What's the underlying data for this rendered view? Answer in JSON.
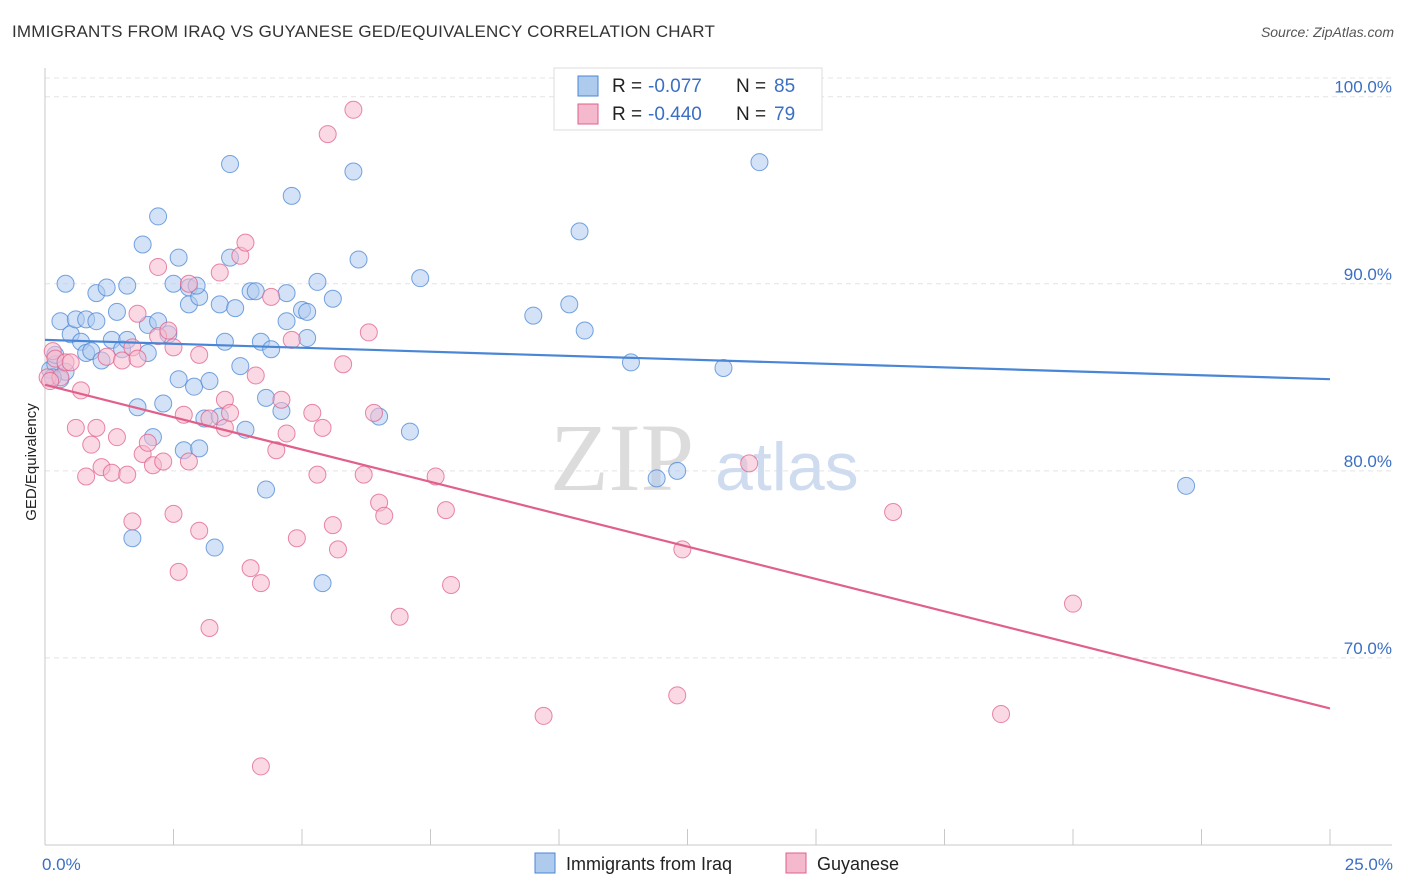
{
  "title": "IMMIGRANTS FROM IRAQ VS GUYANESE GED/EQUIVALENCY CORRELATION CHART",
  "source": "Source: ZipAtlas.com",
  "watermark": {
    "zip": "ZIP",
    "atlas": "atlas"
  },
  "legend_top": {
    "rows": [
      {
        "r_label": "R =",
        "r_value": "-0.077",
        "n_label": "N =",
        "n_value": "85",
        "color": "#aecbee"
      },
      {
        "r_label": "R =",
        "r_value": "-0.440",
        "n_label": "N =",
        "n_value": "79",
        "color": "#f5b9ce"
      }
    ]
  },
  "legend_bottom": {
    "items": [
      {
        "label": "Immigrants from Iraq",
        "color": "#aecbee"
      },
      {
        "label": "Guyanese",
        "color": "#f5b9ce"
      }
    ]
  },
  "chart_data": {
    "type": "scatter",
    "title": "IMMIGRANTS FROM IRAQ VS GUYANESE GED/EQUIVALENCY CORRELATION CHART",
    "xlabel": "",
    "ylabel": "GED/Equivalency",
    "xlim": [
      0,
      25
    ],
    "ylim": [
      60,
      101
    ],
    "x_tick_labels": [
      "0.0%",
      "25.0%"
    ],
    "y_ticks": [
      70,
      80,
      90,
      100
    ],
    "y_tick_labels": [
      "70.0%",
      "80.0%",
      "90.0%",
      "100.0%"
    ],
    "grid": true,
    "legend_position": "top-center",
    "series": [
      {
        "name": "Immigrants from Iraq",
        "color": "#4a86d6",
        "fill": "#aecbee",
        "trend": {
          "x": [
            0,
            25
          ],
          "y": [
            87.0,
            84.9
          ]
        },
        "points": [
          [
            0.1,
            85.4
          ],
          [
            0.2,
            85.7
          ],
          [
            0.2,
            86.2
          ],
          [
            0.3,
            84.9
          ],
          [
            0.3,
            88.0
          ],
          [
            0.4,
            85.3
          ],
          [
            0.4,
            90.0
          ],
          [
            0.5,
            87.3
          ],
          [
            0.6,
            88.1
          ],
          [
            0.7,
            86.9
          ],
          [
            0.8,
            88.1
          ],
          [
            0.8,
            86.3
          ],
          [
            0.9,
            86.4
          ],
          [
            1.0,
            89.5
          ],
          [
            1.0,
            88.0
          ],
          [
            1.1,
            85.9
          ],
          [
            1.2,
            89.8
          ],
          [
            1.3,
            87.0
          ],
          [
            1.4,
            88.5
          ],
          [
            1.5,
            86.5
          ],
          [
            1.6,
            87.0
          ],
          [
            1.6,
            89.9
          ],
          [
            1.7,
            76.4
          ],
          [
            1.8,
            83.4
          ],
          [
            1.9,
            92.1
          ],
          [
            2.0,
            86.3
          ],
          [
            2.0,
            87.8
          ],
          [
            2.1,
            81.8
          ],
          [
            2.2,
            88.0
          ],
          [
            2.3,
            83.6
          ],
          [
            2.4,
            87.3
          ],
          [
            2.2,
            93.6
          ],
          [
            2.5,
            90.0
          ],
          [
            2.6,
            84.9
          ],
          [
            2.6,
            91.4
          ],
          [
            2.7,
            81.1
          ],
          [
            2.8,
            89.8
          ],
          [
            2.8,
            88.9
          ],
          [
            2.9,
            84.5
          ],
          [
            3.0,
            89.3
          ],
          [
            3.0,
            81.2
          ],
          [
            3.1,
            82.8
          ],
          [
            3.2,
            84.8
          ],
          [
            3.3,
            75.9
          ],
          [
            3.4,
            82.9
          ],
          [
            3.4,
            88.9
          ],
          [
            3.5,
            86.9
          ],
          [
            3.6,
            96.4
          ],
          [
            3.6,
            91.4
          ],
          [
            3.7,
            88.7
          ],
          [
            3.8,
            85.6
          ],
          [
            3.9,
            82.2
          ],
          [
            4.0,
            89.6
          ],
          [
            4.1,
            89.6
          ],
          [
            4.2,
            86.9
          ],
          [
            4.3,
            79.0
          ],
          [
            4.3,
            83.9
          ],
          [
            4.4,
            86.5
          ],
          [
            4.6,
            83.2
          ],
          [
            4.7,
            88.0
          ],
          [
            4.8,
            94.7
          ],
          [
            5.0,
            88.6
          ],
          [
            5.1,
            87.1
          ],
          [
            5.1,
            88.5
          ],
          [
            5.4,
            74.0
          ],
          [
            5.3,
            90.1
          ],
          [
            5.6,
            89.2
          ],
          [
            6.0,
            96.0
          ],
          [
            6.1,
            91.3
          ],
          [
            6.5,
            82.9
          ],
          [
            7.1,
            82.1
          ],
          [
            7.3,
            90.3
          ],
          [
            9.5,
            88.3
          ],
          [
            10.4,
            92.8
          ],
          [
            10.5,
            87.5
          ],
          [
            10.2,
            88.9
          ],
          [
            11.4,
            85.8
          ],
          [
            11.9,
            79.6
          ],
          [
            12.3,
            80.0
          ],
          [
            13.2,
            85.5
          ],
          [
            13.9,
            96.5
          ],
          [
            22.2,
            79.2
          ],
          [
            0.15,
            85.0
          ],
          [
            2.95,
            89.9
          ],
          [
            4.7,
            89.5
          ]
        ]
      },
      {
        "name": "Guyanese",
        "color": "#e0608a",
        "fill": "#f5b9ce",
        "trend": {
          "x": [
            0,
            25
          ],
          "y": [
            84.6,
            67.3
          ]
        },
        "points": [
          [
            0.05,
            85.0
          ],
          [
            0.15,
            86.4
          ],
          [
            0.2,
            86.0
          ],
          [
            0.3,
            85.0
          ],
          [
            0.4,
            85.8
          ],
          [
            0.5,
            85.8
          ],
          [
            0.6,
            82.3
          ],
          [
            0.7,
            84.3
          ],
          [
            0.8,
            79.7
          ],
          [
            0.9,
            81.4
          ],
          [
            1.0,
            82.3
          ],
          [
            1.1,
            80.2
          ],
          [
            1.2,
            86.1
          ],
          [
            1.3,
            79.9
          ],
          [
            1.4,
            81.8
          ],
          [
            1.5,
            85.9
          ],
          [
            1.6,
            79.8
          ],
          [
            1.7,
            86.6
          ],
          [
            1.8,
            86.0
          ],
          [
            1.7,
            77.3
          ],
          [
            1.8,
            88.4
          ],
          [
            1.9,
            80.9
          ],
          [
            2.0,
            81.5
          ],
          [
            2.1,
            80.3
          ],
          [
            2.2,
            90.9
          ],
          [
            2.2,
            87.2
          ],
          [
            2.3,
            80.5
          ],
          [
            2.4,
            87.5
          ],
          [
            2.5,
            86.6
          ],
          [
            2.5,
            77.7
          ],
          [
            2.6,
            74.6
          ],
          [
            2.7,
            83.0
          ],
          [
            2.8,
            90.0
          ],
          [
            2.8,
            80.5
          ],
          [
            3.0,
            76.8
          ],
          [
            3.0,
            86.2
          ],
          [
            3.2,
            71.6
          ],
          [
            3.2,
            82.8
          ],
          [
            3.4,
            90.6
          ],
          [
            3.5,
            82.3
          ],
          [
            3.5,
            83.8
          ],
          [
            3.6,
            83.1
          ],
          [
            3.8,
            91.5
          ],
          [
            3.9,
            92.2
          ],
          [
            4.0,
            74.8
          ],
          [
            4.1,
            85.1
          ],
          [
            4.2,
            74.0
          ],
          [
            4.2,
            64.2
          ],
          [
            4.4,
            89.3
          ],
          [
            4.5,
            81.1
          ],
          [
            4.6,
            83.8
          ],
          [
            4.7,
            82.0
          ],
          [
            4.8,
            87.0
          ],
          [
            4.9,
            76.4
          ],
          [
            5.2,
            83.1
          ],
          [
            5.4,
            82.3
          ],
          [
            5.3,
            79.8
          ],
          [
            5.5,
            98.0
          ],
          [
            5.6,
            77.1
          ],
          [
            5.7,
            75.8
          ],
          [
            5.8,
            85.7
          ],
          [
            6.0,
            99.3
          ],
          [
            6.2,
            79.8
          ],
          [
            6.3,
            87.4
          ],
          [
            6.4,
            83.1
          ],
          [
            6.5,
            78.3
          ],
          [
            6.6,
            77.6
          ],
          [
            6.9,
            72.2
          ],
          [
            7.6,
            79.7
          ],
          [
            7.8,
            77.9
          ],
          [
            7.9,
            73.9
          ],
          [
            9.7,
            66.9
          ],
          [
            12.3,
            68.0
          ],
          [
            12.4,
            75.8
          ],
          [
            13.7,
            80.4
          ],
          [
            16.5,
            77.8
          ],
          [
            18.6,
            67.0
          ],
          [
            20.0,
            72.9
          ],
          [
            0.1,
            84.8
          ]
        ]
      }
    ]
  }
}
